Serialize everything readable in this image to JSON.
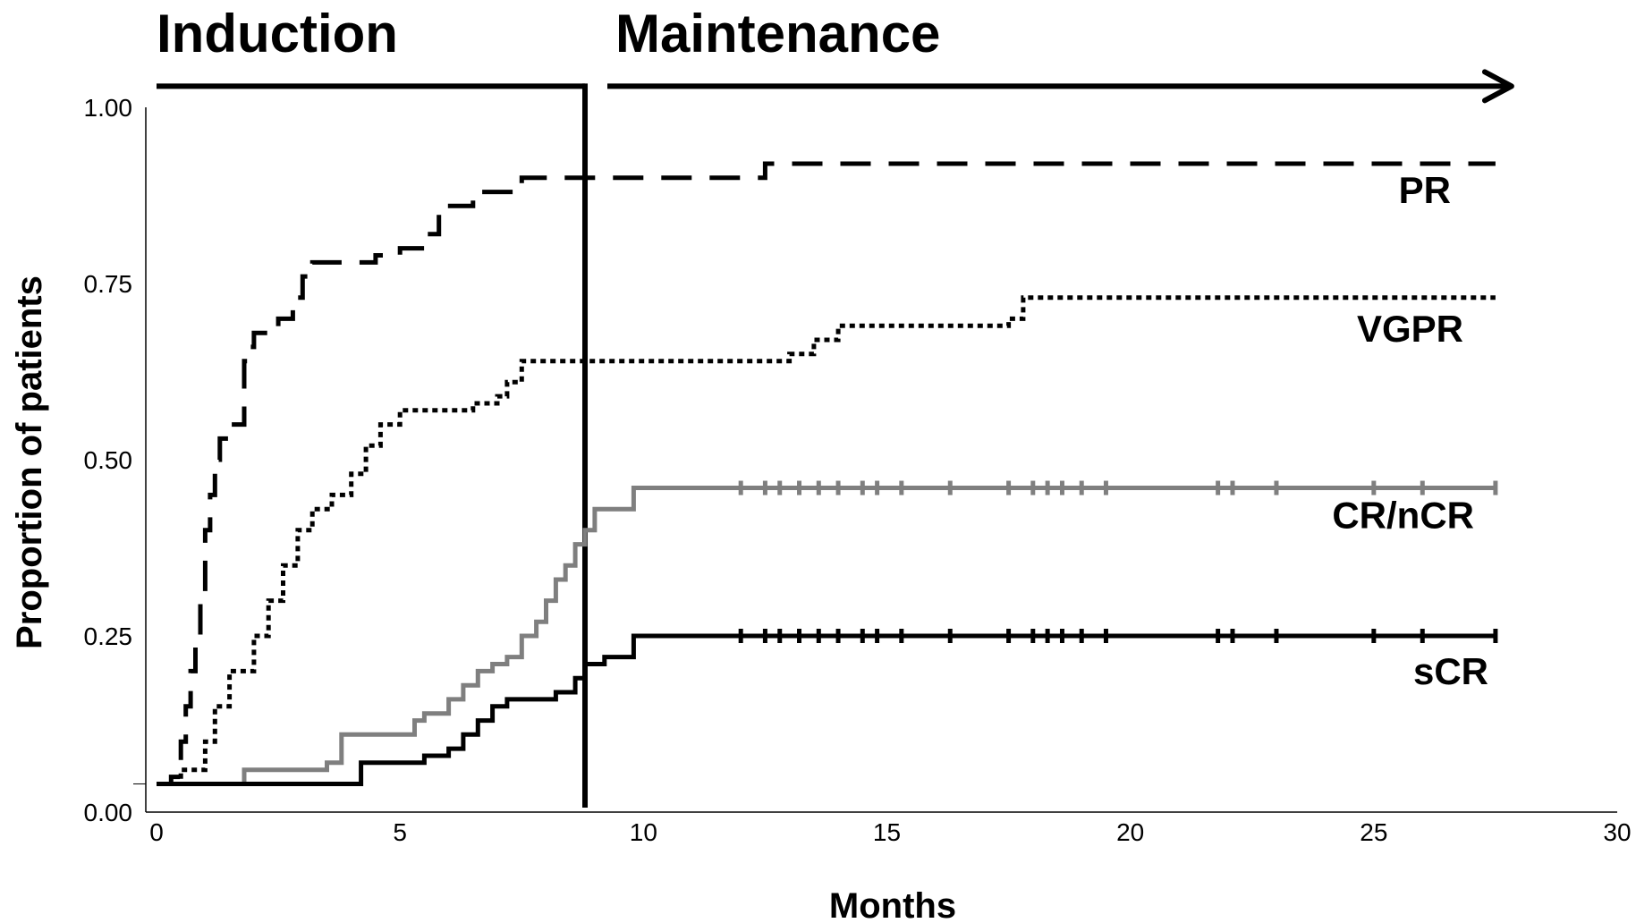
{
  "chart_data": {
    "type": "line",
    "title": "",
    "xlabel": "Months",
    "ylabel": "Proportion of patients",
    "xlim": [
      0,
      30
    ],
    "ylim": [
      0,
      1
    ],
    "xticks": [
      "0",
      "5",
      "10",
      "15",
      "20",
      "25",
      "30"
    ],
    "yticks": [
      "0.00",
      "0.25",
      "0.50",
      "0.75",
      "1.00"
    ],
    "grid": false,
    "phases": [
      {
        "label": "Induction",
        "start": 0,
        "end": 8.8
      },
      {
        "label": "Maintenance",
        "start": 8.8,
        "end": 27.5
      }
    ],
    "series": [
      {
        "name": "PR",
        "color": "#000000",
        "style": "dashed",
        "x": [
          0,
          0.3,
          0.5,
          0.6,
          0.7,
          0.8,
          0.9,
          1.0,
          1.1,
          1.2,
          1.3,
          1.5,
          1.8,
          1.9,
          2.0,
          2.5,
          2.8,
          3.0,
          3.2,
          3.5,
          4.5,
          5.0,
          5.5,
          5.8,
          6.5,
          7.5,
          10.0,
          12.5,
          27.5
        ],
        "y": [
          0.04,
          0.05,
          0.1,
          0.15,
          0.2,
          0.25,
          0.3,
          0.4,
          0.45,
          0.5,
          0.53,
          0.55,
          0.64,
          0.66,
          0.68,
          0.7,
          0.73,
          0.76,
          0.78,
          0.78,
          0.79,
          0.8,
          0.82,
          0.86,
          0.88,
          0.9,
          0.9,
          0.92,
          0.92
        ]
      },
      {
        "name": "VGPR",
        "color": "#000000",
        "style": "dotted",
        "x": [
          0,
          0.5,
          1.0,
          1.2,
          1.5,
          2.0,
          2.3,
          2.6,
          2.9,
          3.2,
          3.6,
          4.0,
          4.3,
          4.6,
          5.0,
          6.0,
          6.5,
          7.0,
          7.2,
          7.5,
          9.0,
          12.0,
          13.0,
          13.5,
          14.0,
          15.0,
          17.5,
          17.8,
          27.5
        ],
        "y": [
          0.04,
          0.06,
          0.1,
          0.15,
          0.2,
          0.25,
          0.3,
          0.35,
          0.4,
          0.43,
          0.45,
          0.48,
          0.52,
          0.55,
          0.57,
          0.57,
          0.58,
          0.59,
          0.61,
          0.64,
          0.64,
          0.64,
          0.65,
          0.67,
          0.69,
          0.69,
          0.7,
          0.73,
          0.73
        ]
      },
      {
        "name": "CR/nCR",
        "color": "#7f7f7f",
        "style": "solid",
        "x": [
          0,
          1.5,
          1.8,
          2.0,
          3.5,
          3.8,
          5.3,
          5.5,
          6.0,
          6.3,
          6.6,
          6.9,
          7.2,
          7.5,
          7.8,
          8.0,
          8.2,
          8.4,
          8.6,
          8.8,
          9.0,
          9.5,
          9.8,
          27.5
        ],
        "y": [
          0.04,
          0.04,
          0.06,
          0.06,
          0.07,
          0.11,
          0.13,
          0.14,
          0.16,
          0.18,
          0.2,
          0.21,
          0.22,
          0.25,
          0.27,
          0.3,
          0.33,
          0.35,
          0.38,
          0.4,
          0.43,
          0.43,
          0.46,
          0.46
        ]
      },
      {
        "name": "sCR",
        "color": "#000000",
        "style": "solid",
        "x": [
          0,
          3.5,
          4.2,
          5.5,
          6.0,
          6.3,
          6.6,
          6.9,
          7.2,
          8.2,
          8.6,
          8.8,
          9.2,
          9.8,
          27.5
        ],
        "y": [
          0.04,
          0.04,
          0.07,
          0.08,
          0.09,
          0.11,
          0.13,
          0.15,
          0.16,
          0.17,
          0.19,
          0.21,
          0.22,
          0.25,
          0.25
        ]
      }
    ]
  }
}
